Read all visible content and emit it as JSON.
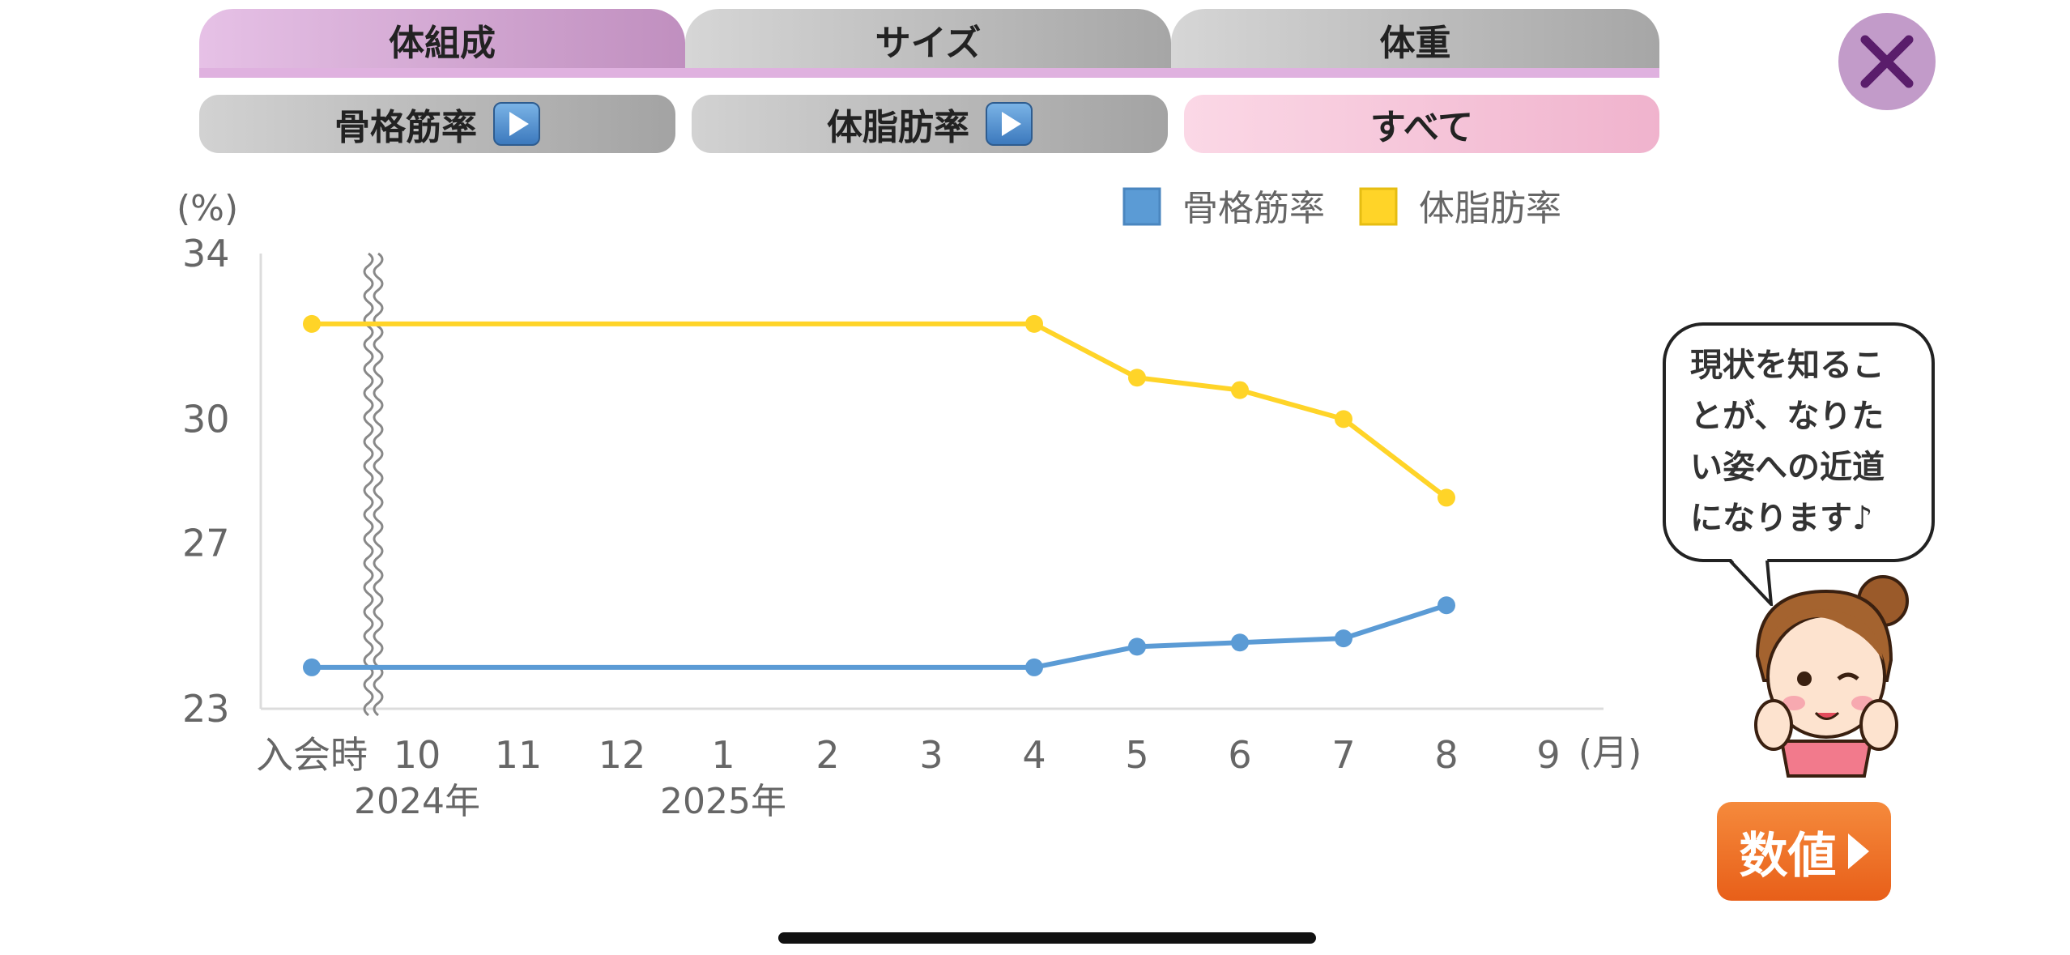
{
  "tabs": [
    {
      "label": "体組成",
      "active": true
    },
    {
      "label": "サイズ",
      "active": false
    },
    {
      "label": "体重",
      "active": false
    }
  ],
  "sub_buttons": {
    "skeletal": "骨格筋率",
    "bodyfat": "体脂肪率",
    "all": "すべて"
  },
  "speech_bubble": {
    "lines": [
      "現状を知るこ",
      "とが、なりた",
      "い姿への近道",
      "になります♪"
    ]
  },
  "number_button": {
    "label": "数値"
  },
  "icons": {
    "close": "close-x-icon",
    "play": "play-triangle-icon",
    "mascot": "mascot-girl-icon"
  },
  "colors": {
    "accent_purple": "#c29bc9",
    "skeletal_series": "#5b9bd5",
    "bodyfat_series": "#ffd428",
    "number_button": "#ee6b25"
  },
  "chart_data": {
    "type": "line",
    "y_unit": "(%)",
    "x_unit": "(月)",
    "ylim": [
      23,
      34
    ],
    "y_ticks": [
      "34",
      "30",
      "27",
      "23"
    ],
    "categories": [
      "入会時",
      "10",
      "11",
      "12",
      "1",
      "2",
      "3",
      "4",
      "5",
      "6",
      "7",
      "8",
      "9"
    ],
    "year_labels": [
      {
        "label": "2024年",
        "category": "10"
      },
      {
        "label": "2025年",
        "category": "1"
      }
    ],
    "axis_break_after": "入会時",
    "grid": false,
    "legend_position": "top-right",
    "series": [
      {
        "name": "骨格筋率",
        "color": "#5b9bd5",
        "points": [
          [
            "入会時",
            24.0
          ],
          [
            "4",
            24.0
          ],
          [
            "5",
            24.5
          ],
          [
            "6",
            24.6
          ],
          [
            "7",
            24.7
          ],
          [
            "8",
            25.5
          ]
        ]
      },
      {
        "name": "体脂肪率",
        "color": "#ffd428",
        "points": [
          [
            "入会時",
            32.3
          ],
          [
            "4",
            32.3
          ],
          [
            "5",
            31.0
          ],
          [
            "6",
            30.7
          ],
          [
            "7",
            30.0
          ],
          [
            "8",
            28.1
          ]
        ]
      }
    ]
  }
}
